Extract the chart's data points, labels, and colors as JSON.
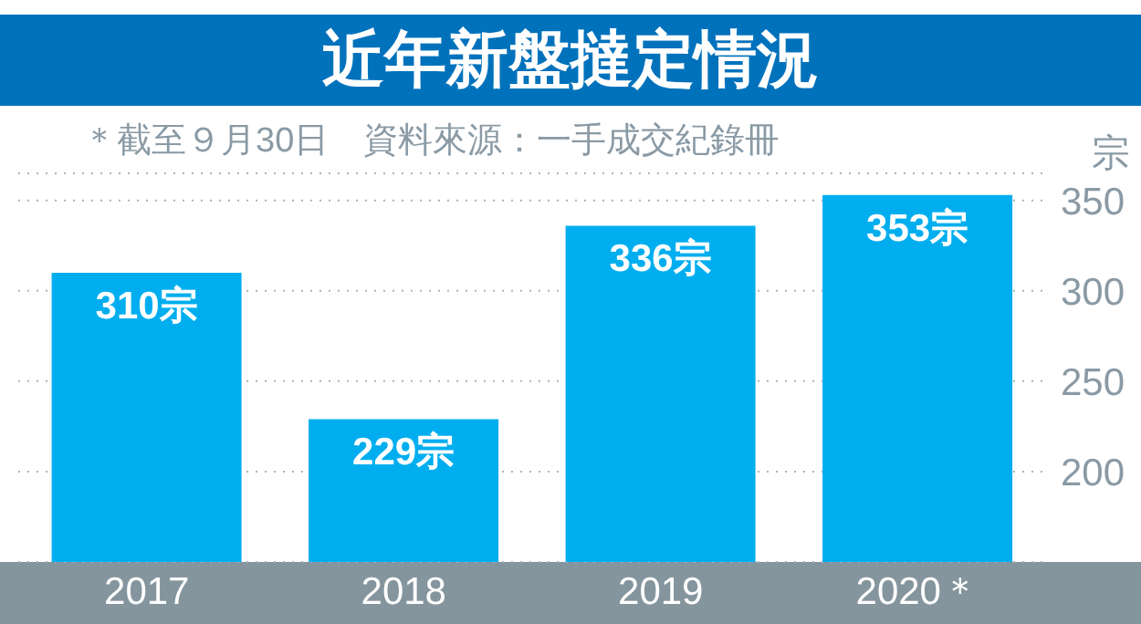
{
  "chart_data": {
    "type": "bar",
    "title": "近年新盤撻定情況",
    "subtitle": "＊截至９月30日　資料來源：一手成交紀錄冊",
    "ylabel": "宗",
    "categories": [
      "2017",
      "2018",
      "2019",
      "2020＊"
    ],
    "values": [
      310,
      229,
      336,
      353
    ],
    "value_labels": [
      "310宗",
      "229宗",
      "336宗",
      "353宗"
    ],
    "color": "#00aeef",
    "ylim": [
      150,
      365
    ],
    "yticks": [
      200,
      250,
      300,
      350
    ],
    "grid": "y",
    "legend": false
  }
}
